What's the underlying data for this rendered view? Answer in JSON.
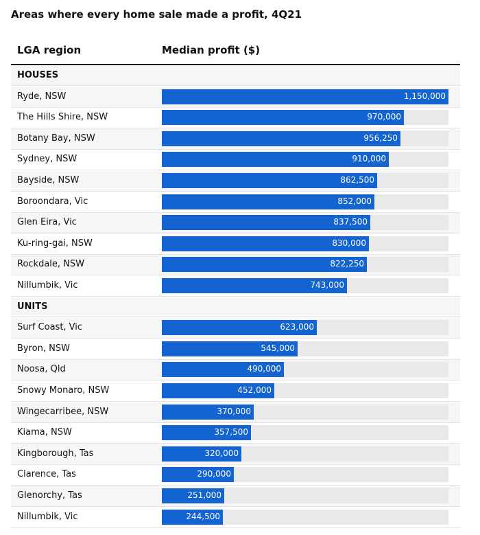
{
  "chart_data": {
    "type": "table",
    "title": "Areas where every home sale made a profit, 4Q21",
    "columns": [
      "LGA region",
      "Median profit ($)"
    ],
    "xlim": [
      0,
      1150000
    ],
    "groups": [
      {
        "name": "HOUSES",
        "rows": [
          {
            "region": "Ryde, NSW",
            "value": 1150000,
            "label": "1,150,000"
          },
          {
            "region": "The Hills Shire, NSW",
            "value": 970000,
            "label": "970,000"
          },
          {
            "region": "Botany Bay, NSW",
            "value": 956250,
            "label": "956,250"
          },
          {
            "region": "Sydney, NSW",
            "value": 910000,
            "label": "910,000"
          },
          {
            "region": "Bayside, NSW",
            "value": 862500,
            "label": "862,500"
          },
          {
            "region": "Boroondara, Vic",
            "value": 852000,
            "label": "852,000"
          },
          {
            "region": "Glen Eira, Vic",
            "value": 837500,
            "label": "837,500"
          },
          {
            "region": "Ku-ring-gai, NSW",
            "value": 830000,
            "label": "830,000"
          },
          {
            "region": "Rockdale, NSW",
            "value": 822250,
            "label": "822,250"
          },
          {
            "region": "Nillumbik, Vic",
            "value": 743000,
            "label": "743,000"
          }
        ]
      },
      {
        "name": "UNITS",
        "rows": [
          {
            "region": "Surf Coast, Vic",
            "value": 623000,
            "label": "623,000"
          },
          {
            "region": "Byron, NSW",
            "value": 545000,
            "label": "545,000"
          },
          {
            "region": "Noosa, Qld",
            "value": 490000,
            "label": "490,000"
          },
          {
            "region": "Snowy Monaro, NSW",
            "value": 452000,
            "label": "452,000"
          },
          {
            "region": "Wingecarribee, NSW",
            "value": 370000,
            "label": "370,000"
          },
          {
            "region": "Kiama, NSW",
            "value": 357500,
            "label": "357,500"
          },
          {
            "region": "Kingborough, Tas",
            "value": 320000,
            "label": "320,000"
          },
          {
            "region": "Clarence, Tas",
            "value": 290000,
            "label": "290,000"
          },
          {
            "region": "Glenorchy, Tas",
            "value": 251000,
            "label": "251,000"
          },
          {
            "region": "Nillumbik, Vic",
            "value": 244500,
            "label": "244,500"
          }
        ]
      }
    ],
    "colors": {
      "bar": "#1363d0",
      "track": "#e9e9e9",
      "value_text": "#ffffff"
    }
  }
}
